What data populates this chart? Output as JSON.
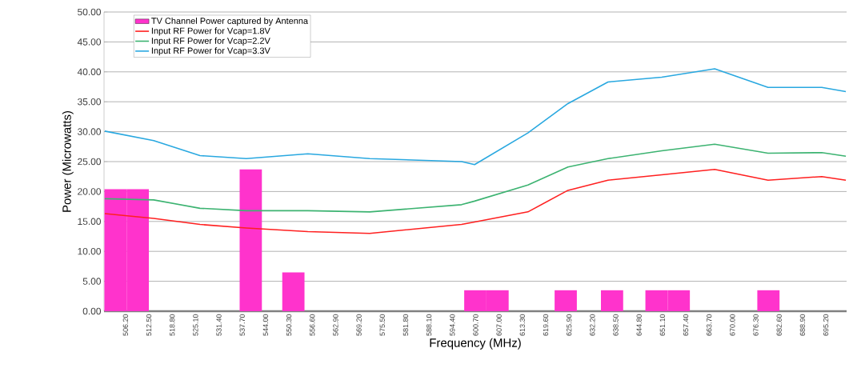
{
  "chart_data": {
    "type": "line",
    "xlabel": "Frequency (MHz)",
    "ylabel": "Power (Microwatts)",
    "xlim": [
      500.4,
      700.8
    ],
    "xticks": [
      {
        "value": 506.2,
        "label": "506.20"
      },
      {
        "value": 512.5,
        "label": "512.50"
      },
      {
        "value": 518.8,
        "label": "518.80"
      },
      {
        "value": 525.1,
        "label": "525.10"
      },
      {
        "value": 531.4,
        "label": "531.40"
      },
      {
        "value": 537.7,
        "label": "537.70"
      },
      {
        "value": 544.0,
        "label": "544.00"
      },
      {
        "value": 550.3,
        "label": "550.30"
      },
      {
        "value": 556.6,
        "label": "556.60"
      },
      {
        "value": 562.9,
        "label": "562.90"
      },
      {
        "value": 569.2,
        "label": "569.20"
      },
      {
        "value": 575.5,
        "label": "575.50"
      },
      {
        "value": 581.8,
        "label": "581.80"
      },
      {
        "value": 588.1,
        "label": "588.10"
      },
      {
        "value": 594.4,
        "label": "594.40"
      },
      {
        "value": 600.7,
        "label": "600.70"
      },
      {
        "value": 607.0,
        "label": "607.00"
      },
      {
        "value": 613.3,
        "label": "613.30"
      },
      {
        "value": 619.6,
        "label": "619.60"
      },
      {
        "value": 625.9,
        "label": "625.90"
      },
      {
        "value": 632.2,
        "label": "632.20"
      },
      {
        "value": 638.5,
        "label": "638.50"
      },
      {
        "value": 644.8,
        "label": "644.80"
      },
      {
        "value": 651.1,
        "label": "651.10"
      },
      {
        "value": 657.4,
        "label": "657.40"
      },
      {
        "value": 663.7,
        "label": "663.70"
      },
      {
        "value": 670.0,
        "label": "670.00"
      },
      {
        "value": 676.3,
        "label": "676.30"
      },
      {
        "value": 682.6,
        "label": "682.60"
      },
      {
        "value": 688.9,
        "label": "688.90"
      },
      {
        "value": 695.2,
        "label": "695.20"
      }
    ],
    "ylim": [
      0,
      50
    ],
    "yticks": [
      {
        "value": 0,
        "label": "0.00"
      },
      {
        "value": 5,
        "label": "5.00"
      },
      {
        "value": 10,
        "label": "10.00"
      },
      {
        "value": 15,
        "label": "15.00"
      },
      {
        "value": 20,
        "label": "20.00"
      },
      {
        "value": 25,
        "label": "25.00"
      },
      {
        "value": 30,
        "label": "30.00"
      },
      {
        "value": 35,
        "label": "35.00"
      },
      {
        "value": 40,
        "label": "40.00"
      },
      {
        "value": 45,
        "label": "45.00"
      },
      {
        "value": 50,
        "label": "50.00"
      }
    ],
    "grid": "y",
    "legend": "top left",
    "series": [
      {
        "name": "TV Channel Power captured by Antenna",
        "type": "bar",
        "color": "#ff33cc",
        "x": [
          503.5,
          509.5,
          540.0,
          551.5,
          600.6,
          606.6,
          625.0,
          637.5,
          649.5,
          655.5,
          679.7
        ],
        "values": [
          20.4,
          20.4,
          23.7,
          6.5,
          3.5,
          3.5,
          3.5,
          3.5,
          3.5,
          3.5,
          3.5
        ]
      },
      {
        "name": "Input RF Power for Vcap=1.8V",
        "color": "#ff2020",
        "x": [
          500.6,
          513.8,
          526.3,
          538.8,
          555.4,
          572.1,
          596.9,
          600.4,
          614.8,
          625.6,
          636.4,
          650.9,
          665.2,
          679.6,
          694.1,
          700.6
        ],
        "values": [
          16.3,
          15.5,
          14.5,
          13.9,
          13.3,
          13.0,
          14.5,
          14.9,
          16.6,
          20.2,
          21.9,
          22.8,
          23.7,
          21.9,
          22.5,
          21.9
        ]
      },
      {
        "name": "Input RF Power for Vcap=2.2V",
        "color": "#3cb371",
        "x": [
          500.6,
          513.8,
          526.3,
          538.8,
          555.4,
          572.1,
          596.9,
          600.4,
          614.8,
          625.6,
          636.4,
          650.9,
          665.2,
          679.6,
          694.1,
          700.6
        ],
        "values": [
          18.8,
          18.6,
          17.2,
          16.8,
          16.8,
          16.6,
          17.8,
          18.4,
          21.1,
          24.1,
          25.5,
          26.8,
          27.9,
          26.4,
          26.5,
          25.9
        ]
      },
      {
        "name": "Input RF Power for Vcap=3.3V",
        "color": "#29a8e0",
        "x": [
          500.6,
          513.8,
          526.3,
          538.8,
          555.4,
          572.1,
          596.9,
          600.4,
          614.8,
          625.6,
          636.4,
          650.9,
          665.2,
          679.6,
          694.1,
          700.6
        ],
        "values": [
          30.1,
          28.5,
          26.0,
          25.5,
          26.3,
          25.5,
          25.0,
          24.5,
          29.8,
          34.7,
          38.3,
          39.1,
          40.5,
          37.4,
          37.4,
          36.7
        ]
      }
    ]
  }
}
